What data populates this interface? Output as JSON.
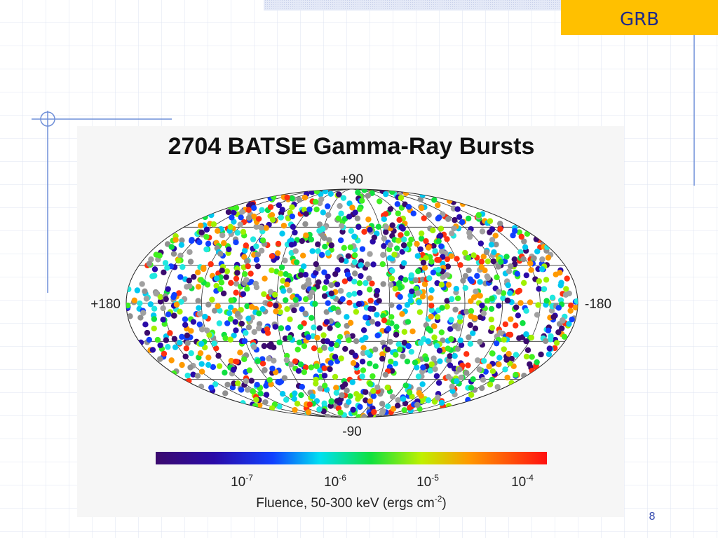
{
  "header": {
    "title": "GRB"
  },
  "figure": {
    "title": "2704 BATSE Gamma-Ray Bursts",
    "lat_top": "+90",
    "lat_bottom": "-90",
    "lon_left": "+180",
    "lon_right": "-180",
    "colorbar": {
      "ticks": [
        {
          "base": "10",
          "exponent": "-7"
        },
        {
          "base": "10",
          "exponent": "-6"
        },
        {
          "base": "10",
          "exponent": "-5"
        },
        {
          "base": "10",
          "exponent": "-4"
        }
      ],
      "label": {
        "text": "Fluence, 50-300 keV (ergs cm",
        "exponent": "-2",
        "close": ")"
      }
    }
  },
  "footer": {
    "page": "8"
  }
}
